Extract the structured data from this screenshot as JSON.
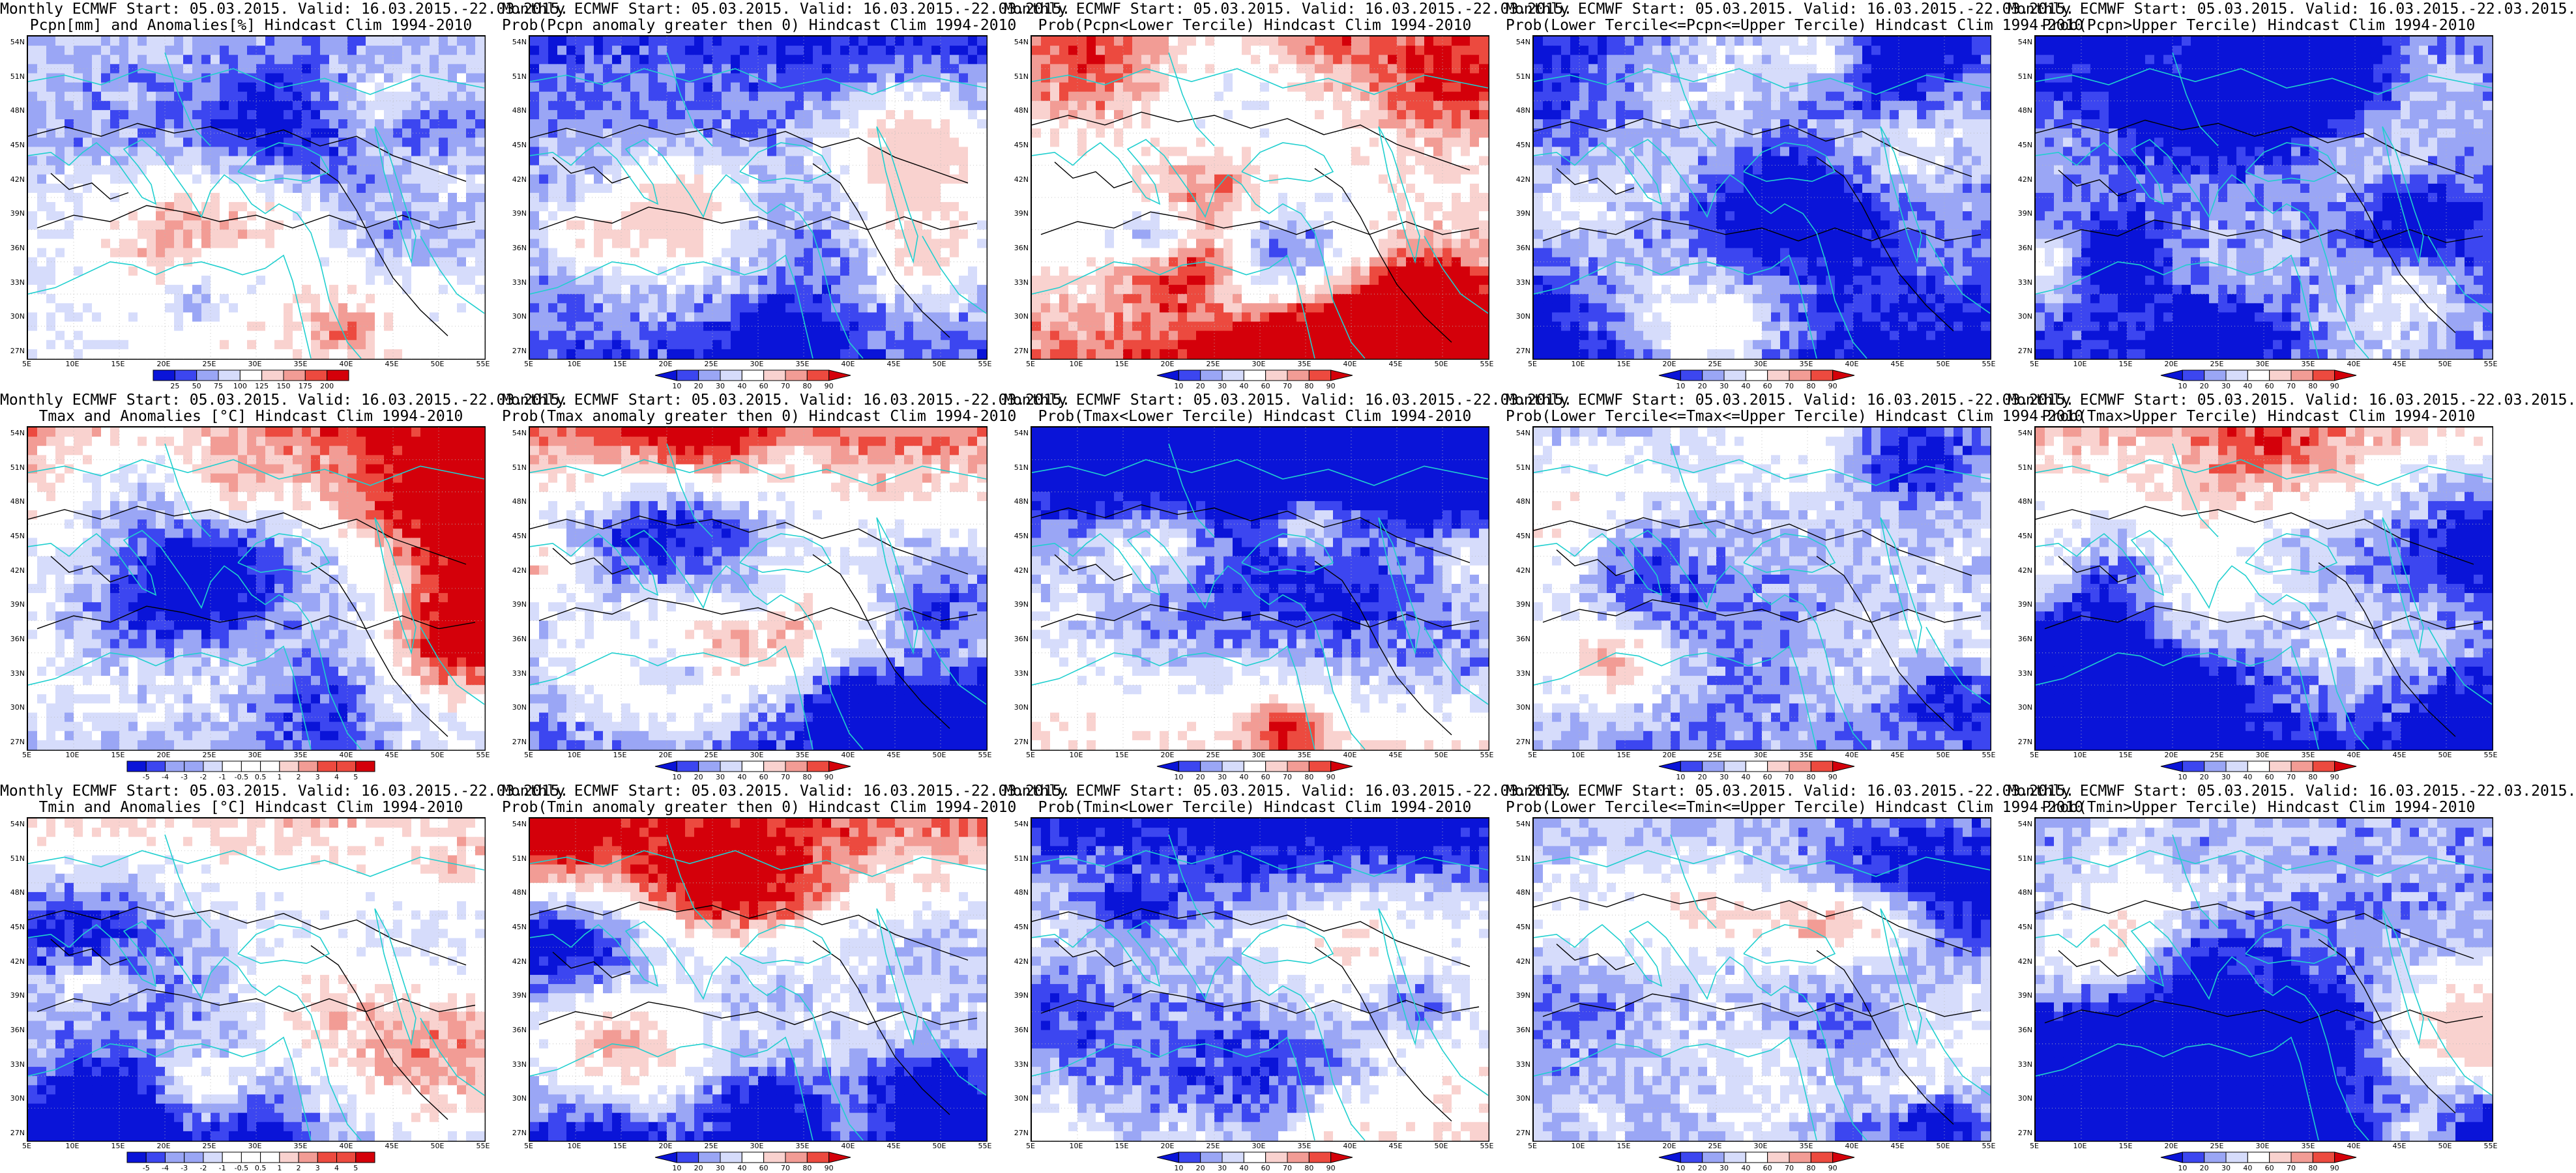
{
  "colors": {
    "dark_blue": "#0a14d8",
    "mid_blue": "#3c46f0",
    "light_blue": "#9aa6f5",
    "pale_blue": "#d6dcfb",
    "white": "#ffffff",
    "pale_red": "#f9d2cf",
    "light_red": "#f29c95",
    "mid_red": "#ec4a3f",
    "dark_red": "#d4000a",
    "coastline": "#20cfcf",
    "contour": "#000000"
  },
  "map": {
    "lat_labels": [
      "54N",
      "51N",
      "48N",
      "45N",
      "42N",
      "39N",
      "36N",
      "33N",
      "30N",
      "27N"
    ],
    "lon_labels": [
      "5E",
      "10E",
      "15E",
      "20E",
      "25E",
      "30E",
      "35E",
      "40E",
      "45E",
      "50E",
      "55E"
    ]
  },
  "panels": [
    {
      "line1": "Monthly ECMWF Start: 05.03.2015. Valid: 16.03.2015.-22.03.2015.",
      "line2": "Pcpn[mm] and Anomalies[%] Hindcast Clim 1994-2010",
      "variable": "precipitation",
      "scheme": "anomaly",
      "seed": 11,
      "bias": -0.35,
      "north": 0.0,
      "south": 0.25,
      "tint": "mixed",
      "wrapped_arrows": false,
      "colorbar": [
        "25",
        "50",
        "75",
        "100",
        "125",
        "150",
        "175",
        "200"
      ]
    },
    {
      "line1": "Monthly ECMWF Start: 05.03.2015. Valid: 16.03.2015.-22.03.2015.",
      "line2": "Prob(Pcpn anomaly greater then 0) Hindcast Clim 1994-2010",
      "variable": "precipitation",
      "scheme": "prob",
      "seed": 23,
      "bias": -0.55,
      "north": -0.3,
      "south": -0.2,
      "tint": "blue",
      "wrapped_arrows": true,
      "colorbar": [
        "10",
        "20",
        "30",
        "40",
        "60",
        "70",
        "80",
        "90"
      ]
    },
    {
      "line1": "Monthly ECMWF Start: 05.03.2015. Valid: 16.03.2015.-22.03.2015.",
      "line2": "Prob(Pcpn<Lower Tercile) Hindcast Clim 1994-2010",
      "variable": "precipitation",
      "scheme": "prob",
      "seed": 37,
      "bias": 0.05,
      "north": 0.35,
      "south": 0.6,
      "tint": "red",
      "wrapped_arrows": true,
      "colorbar": [
        "10",
        "20",
        "30",
        "40",
        "60",
        "70",
        "80",
        "90"
      ]
    },
    {
      "line1": "Monthly ECMWF Start: 05.03.2015. Valid: 16.03.2015.-22.03.2015.",
      "line2": "Prob(Lower Tercile<=Pcpn<=Upper Tercile) Hindcast Clim 1994-2010",
      "variable": "precipitation",
      "scheme": "prob",
      "seed": 41,
      "bias": -0.6,
      "north": -0.3,
      "south": -0.5,
      "tint": "blue",
      "wrapped_arrows": true,
      "colorbar": [
        "10",
        "20",
        "30",
        "40",
        "60",
        "70",
        "80",
        "90"
      ]
    },
    {
      "line1": "Monthly ECMWF Start: 05.03.2015. Valid: 16.03.2015.-22.03.2015.",
      "line2": "Prob(Pcpn>Upper Tercile) Hindcast Clim 1994-2010",
      "variable": "precipitation",
      "scheme": "prob",
      "seed": 53,
      "bias": -0.55,
      "north": -0.4,
      "south": -0.25,
      "tint": "blue",
      "wrapped_arrows": true,
      "colorbar": [
        "10",
        "20",
        "30",
        "40",
        "60",
        "70",
        "80",
        "90"
      ]
    },
    {
      "line1": "Monthly ECMWF Start: 05.03.2015. Valid: 16.03.2015.-22.03.2015.",
      "line2": "Tmax and Anomalies [°C] Hindcast Clim 1994-2010",
      "variable": "tmax",
      "scheme": "anomaly",
      "seed": 61,
      "bias": -0.1,
      "north": 0.8,
      "south": -0.2,
      "tint": "mixed",
      "wrapped_arrows": false,
      "colorbar": [
        "-5",
        "-4",
        "-3",
        "-2",
        "-1",
        "-0.5",
        "0.5",
        "1",
        "2",
        "3",
        "4",
        "5"
      ]
    },
    {
      "line1": "Monthly ECMWF Start: 05.03.2015. Valid: 16.03.2015.-22.03.2015.",
      "line2": "Prob(Tmax anomaly greater then 0) Hindcast Clim 1994-2010",
      "variable": "tmax",
      "scheme": "prob",
      "seed": 67,
      "bias": -0.35,
      "north": 1.1,
      "south": -0.4,
      "tint": "mixed",
      "wrapped_arrows": true,
      "colorbar": [
        "10",
        "20",
        "30",
        "40",
        "60",
        "70",
        "80",
        "90"
      ]
    },
    {
      "line1": "Monthly ECMWF Start: 05.03.2015. Valid: 16.03.2015.-22.03.2015.",
      "line2": "Prob(Tmax<Lower Tercile) Hindcast Clim 1994-2010",
      "variable": "tmax",
      "scheme": "prob",
      "seed": 71,
      "bias": -0.05,
      "north": -1.1,
      "south": 0.25,
      "tint": "mixed",
      "wrapped_arrows": true,
      "colorbar": [
        "10",
        "20",
        "30",
        "40",
        "60",
        "70",
        "80",
        "90"
      ]
    },
    {
      "line1": "Monthly ECMWF Start: 05.03.2015. Valid: 16.03.2015.-22.03.2015.",
      "line2": "Prob(Lower Tercile<=Tmax<=Upper Tercile) Hindcast Clim 1994-2010",
      "variable": "tmax",
      "scheme": "prob",
      "seed": 79,
      "bias": -0.3,
      "north": -0.1,
      "south": -0.25,
      "tint": "mixed",
      "wrapped_arrows": true,
      "colorbar": [
        "10",
        "20",
        "30",
        "40",
        "60",
        "70",
        "80",
        "90"
      ]
    },
    {
      "line1": "Monthly ECMWF Start: 05.03.2015. Valid: 16.03.2015.-22.03.2015.",
      "line2": "Prob(Tmax>Upper Tercile) Hindcast Clim 1994-2010",
      "variable": "tmax",
      "scheme": "prob",
      "seed": 83,
      "bias": -0.45,
      "north": 0.9,
      "south": -0.55,
      "tint": "mixed",
      "wrapped_arrows": true,
      "colorbar": [
        "10",
        "20",
        "30",
        "40",
        "60",
        "70",
        "80",
        "90"
      ]
    },
    {
      "line1": "Monthly ECMWF Start: 05.03.2015. Valid: 16.03.2015.-22.03.2015.",
      "line2": "Tmin and Anomalies [°C] Hindcast Clim 1994-2010",
      "variable": "tmin",
      "scheme": "anomaly",
      "seed": 89,
      "bias": -0.15,
      "north": 0.5,
      "south": -0.3,
      "tint": "mixed",
      "wrapped_arrows": false,
      "colorbar": [
        "-5",
        "-4",
        "-3",
        "-2",
        "-1",
        "-0.5",
        "0.5",
        "1",
        "2",
        "3",
        "4",
        "5"
      ]
    },
    {
      "line1": "Monthly ECMWF Start: 05.03.2015. Valid: 16.03.2015.-22.03.2015.",
      "line2": "Prob(Tmin anomaly greater then 0) Hindcast Clim 1994-2010",
      "variable": "tmin",
      "scheme": "prob",
      "seed": 97,
      "bias": -0.35,
      "north": 1.0,
      "south": -0.5,
      "tint": "mixed",
      "wrapped_arrows": true,
      "colorbar": [
        "10",
        "20",
        "30",
        "40",
        "60",
        "70",
        "80",
        "90"
      ]
    },
    {
      "line1": "Monthly ECMWF Start: 05.03.2015. Valid: 16.03.2015.-22.03.2015.",
      "line2": "Prob(Tmin<Lower Tercile) Hindcast Clim 1994-2010",
      "variable": "tmin",
      "scheme": "prob",
      "seed": 101,
      "bias": -0.05,
      "north": -0.9,
      "south": 0.35,
      "tint": "mixed",
      "wrapped_arrows": true,
      "colorbar": [
        "10",
        "20",
        "30",
        "40",
        "60",
        "70",
        "80",
        "90"
      ]
    },
    {
      "line1": "Monthly ECMWF Start: 05.03.2015. Valid: 16.03.2015.-22.03.2015.",
      "line2": "Prob(Lower Tercile<=Tmin<=Upper Tercile) Hindcast Clim 1994-2010",
      "variable": "tmin",
      "scheme": "prob",
      "seed": 103,
      "bias": -0.3,
      "north": -0.1,
      "south": -0.2,
      "tint": "mixed",
      "wrapped_arrows": true,
      "colorbar": [
        "10",
        "20",
        "30",
        "40",
        "60",
        "70",
        "80",
        "90"
      ]
    },
    {
      "line1": "Monthly ECMWF Start: 05.03.2015. Valid: 16.03.2015.-22.03.2015.",
      "line2": "Prob(Tmin>Upper Tercile) Hindcast Clim 1994-2010",
      "variable": "tmin",
      "scheme": "prob",
      "seed": 107,
      "bias": -0.55,
      "north": 0.1,
      "south": -0.6,
      "tint": "blue",
      "wrapped_arrows": true,
      "colorbar": [
        "10",
        "20",
        "30",
        "40",
        "60",
        "70",
        "80",
        "90"
      ]
    }
  ]
}
